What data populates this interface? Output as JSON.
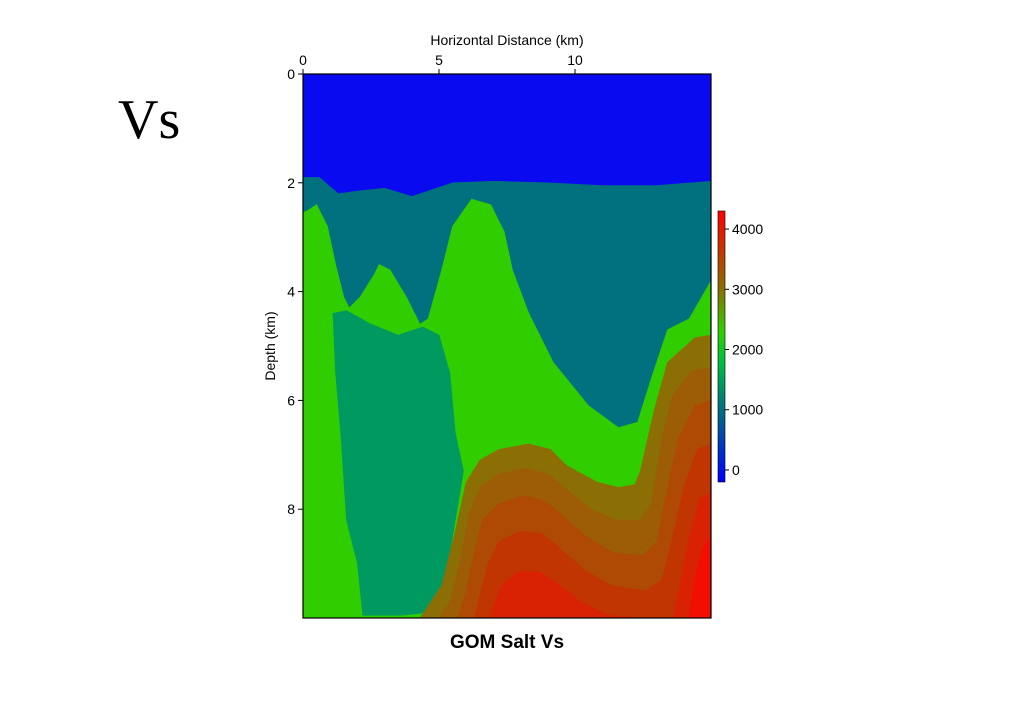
{
  "slide": {
    "title": "Vs"
  },
  "chart_data": {
    "type": "heatmap",
    "title": "GOM Salt Vs",
    "xlabel": "Horizontal Distance (km)",
    "ylabel": "Depth (km)",
    "x_axis_position": "top",
    "xlim": [
      0,
      15
    ],
    "ylim": [
      0,
      10
    ],
    "y_inverted": true,
    "x_ticks": [
      0,
      5,
      10
    ],
    "y_ticks": [
      0,
      2,
      4,
      6,
      8
    ],
    "colorbar": {
      "range": [
        -200,
        4300
      ],
      "ticks": [
        0,
        1000,
        2000,
        3000,
        4000
      ],
      "stops": [
        {
          "value": -200,
          "color": "#0000ff"
        },
        {
          "value": 1000,
          "color": "#007080"
        },
        {
          "value": 1800,
          "color": "#00c040"
        },
        {
          "value": 2300,
          "color": "#30d000"
        },
        {
          "value": 3000,
          "color": "#8a7000"
        },
        {
          "value": 4300,
          "color": "#ff0000"
        }
      ]
    },
    "layers": [
      {
        "name": "water",
        "value": 0,
        "color": "#0a0af0",
        "points": [
          [
            0,
            0
          ],
          [
            15,
            0
          ],
          [
            15,
            10
          ],
          [
            0,
            10
          ]
        ]
      },
      {
        "name": "sediment",
        "value": 1000,
        "color": "#01707f",
        "points": [
          [
            0,
            1.9
          ],
          [
            0.6,
            1.9
          ],
          [
            1.3,
            2.2
          ],
          [
            2,
            2.15
          ],
          [
            3,
            2.1
          ],
          [
            4,
            2.25
          ],
          [
            4.6,
            2.15
          ],
          [
            5.5,
            2.0
          ],
          [
            7,
            1.97
          ],
          [
            9,
            2.0
          ],
          [
            11,
            2.05
          ],
          [
            13,
            2.05
          ],
          [
            15,
            1.97
          ],
          [
            15,
            10
          ],
          [
            0,
            10
          ]
        ]
      },
      {
        "name": "sediment_fast",
        "value": 2300,
        "color": "#30cd00",
        "points": [
          [
            0,
            2.55
          ],
          [
            0.2,
            2.5
          ],
          [
            0.5,
            2.4
          ],
          [
            0.9,
            2.8
          ],
          [
            1.2,
            3.5
          ],
          [
            1.5,
            4.1
          ],
          [
            1.7,
            4.3
          ],
          [
            2.1,
            4.1
          ],
          [
            2.6,
            3.7
          ],
          [
            2.8,
            3.5
          ],
          [
            3.2,
            3.6
          ],
          [
            3.8,
            4.1
          ],
          [
            4.3,
            4.6
          ],
          [
            4.6,
            4.5
          ],
          [
            5.1,
            3.6
          ],
          [
            5.5,
            2.8
          ],
          [
            6.2,
            2.3
          ],
          [
            6.9,
            2.4
          ],
          [
            7.4,
            2.9
          ],
          [
            7.7,
            3.6
          ],
          [
            8.3,
            4.4
          ],
          [
            9.2,
            5.3
          ],
          [
            10.5,
            6.1
          ],
          [
            11.6,
            6.5
          ],
          [
            12.3,
            6.4
          ],
          [
            12.8,
            5.6
          ],
          [
            13.4,
            4.7
          ],
          [
            14.2,
            4.5
          ],
          [
            15,
            3.8
          ],
          [
            15,
            10
          ],
          [
            0,
            10
          ]
        ]
      },
      {
        "name": "salt",
        "value": 1700,
        "color": "#009a60",
        "points": [
          [
            1.1,
            4.4
          ],
          [
            1.6,
            4.35
          ],
          [
            2.5,
            4.6
          ],
          [
            3.5,
            4.8
          ],
          [
            4.4,
            4.65
          ],
          [
            5.0,
            4.8
          ],
          [
            5.4,
            5.5
          ],
          [
            5.6,
            6.6
          ],
          [
            5.9,
            7.3
          ],
          [
            5.5,
            8.5
          ],
          [
            5.1,
            9.6
          ],
          [
            4.6,
            9.9
          ],
          [
            3.6,
            9.95
          ],
          [
            2.2,
            9.95
          ],
          [
            2.0,
            9.0
          ],
          [
            1.6,
            8.2
          ],
          [
            1.4,
            6.7
          ],
          [
            1.2,
            5.5
          ]
        ]
      },
      {
        "name": "deep_1",
        "value": 2800,
        "color": "#8c6f04",
        "points": [
          [
            15,
            4.8
          ],
          [
            14.4,
            4.85
          ],
          [
            13.4,
            5.3
          ],
          [
            12.9,
            6.2
          ],
          [
            12.4,
            7.3
          ],
          [
            12.2,
            7.55
          ],
          [
            11.6,
            7.6
          ],
          [
            10.8,
            7.5
          ],
          [
            9.7,
            7.2
          ],
          [
            9.1,
            6.9
          ],
          [
            8.3,
            6.8
          ],
          [
            7.2,
            6.9
          ],
          [
            6.5,
            7.1
          ],
          [
            6.0,
            7.5
          ],
          [
            5.6,
            8.4
          ],
          [
            5.1,
            9.4
          ],
          [
            4.3,
            10
          ],
          [
            15,
            10
          ]
        ]
      },
      {
        "name": "deep_2",
        "value": 3100,
        "color": "#9c5d06",
        "points": [
          [
            15,
            5.4
          ],
          [
            14.3,
            5.45
          ],
          [
            13.6,
            5.9
          ],
          [
            13.2,
            6.7
          ],
          [
            12.8,
            7.9
          ],
          [
            12.4,
            8.2
          ],
          [
            11.5,
            8.2
          ],
          [
            10.6,
            8.0
          ],
          [
            9.6,
            7.6
          ],
          [
            9.0,
            7.35
          ],
          [
            8.2,
            7.25
          ],
          [
            7.2,
            7.35
          ],
          [
            6.5,
            7.6
          ],
          [
            6.1,
            8.1
          ],
          [
            5.8,
            8.9
          ],
          [
            5.4,
            9.7
          ],
          [
            5.0,
            10
          ],
          [
            15,
            10
          ]
        ]
      },
      {
        "name": "deep_3",
        "value": 3400,
        "color": "#ae4a04",
        "points": [
          [
            15,
            6.0
          ],
          [
            14.4,
            6.1
          ],
          [
            13.8,
            6.7
          ],
          [
            13.4,
            7.6
          ],
          [
            13.0,
            8.6
          ],
          [
            12.5,
            8.85
          ],
          [
            11.4,
            8.8
          ],
          [
            10.4,
            8.5
          ],
          [
            9.5,
            8.1
          ],
          [
            8.9,
            7.85
          ],
          [
            8.1,
            7.75
          ],
          [
            7.2,
            7.9
          ],
          [
            6.6,
            8.2
          ],
          [
            6.3,
            8.8
          ],
          [
            6.0,
            9.5
          ],
          [
            5.7,
            10
          ],
          [
            15,
            10
          ]
        ]
      },
      {
        "name": "deep_4",
        "value": 3700,
        "color": "#c13503",
        "points": [
          [
            15,
            6.8
          ],
          [
            14.5,
            6.9
          ],
          [
            14.0,
            7.6
          ],
          [
            13.6,
            8.5
          ],
          [
            13.2,
            9.3
          ],
          [
            12.6,
            9.5
          ],
          [
            11.3,
            9.4
          ],
          [
            10.3,
            9.1
          ],
          [
            9.4,
            8.7
          ],
          [
            8.8,
            8.45
          ],
          [
            8.0,
            8.4
          ],
          [
            7.2,
            8.6
          ],
          [
            6.8,
            9.0
          ],
          [
            6.5,
            9.6
          ],
          [
            6.3,
            10
          ],
          [
            15,
            10
          ]
        ]
      },
      {
        "name": "deep_5",
        "value": 4000,
        "color": "#d82203",
        "points": [
          [
            15,
            7.7
          ],
          [
            14.6,
            7.8
          ],
          [
            14.2,
            8.5
          ],
          [
            13.9,
            9.3
          ],
          [
            13.6,
            10
          ],
          [
            12.5,
            10
          ],
          [
            11.2,
            9.95
          ],
          [
            10.2,
            9.7
          ],
          [
            9.3,
            9.35
          ],
          [
            8.7,
            9.15
          ],
          [
            7.9,
            9.15
          ],
          [
            7.3,
            9.4
          ],
          [
            7.0,
            9.8
          ],
          [
            6.9,
            10
          ],
          [
            15,
            10
          ]
        ]
      },
      {
        "name": "deep_6",
        "value": 4300,
        "color": "#f20e02",
        "points": [
          [
            15,
            8.5
          ],
          [
            14.7,
            8.7
          ],
          [
            14.4,
            9.3
          ],
          [
            14.2,
            10
          ],
          [
            15,
            10
          ]
        ]
      }
    ]
  }
}
